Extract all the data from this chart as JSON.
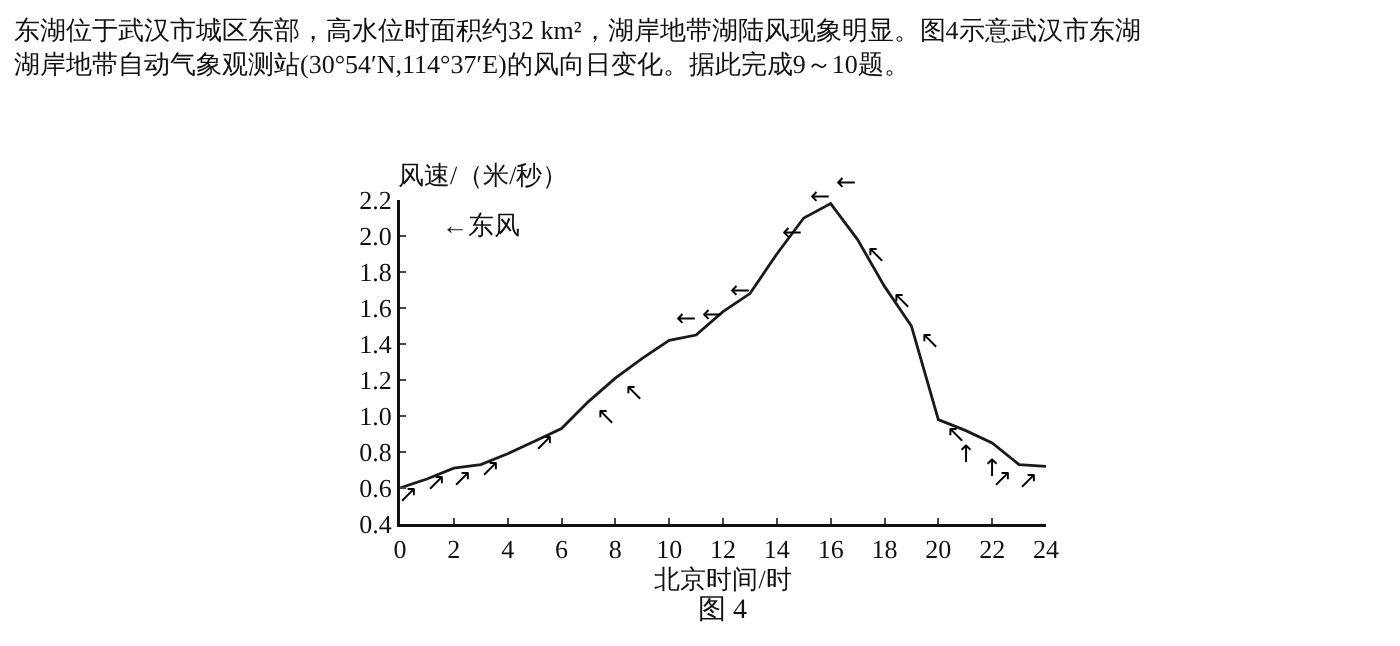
{
  "chart_data": {
    "type": "line",
    "title": "东湖位于武汉市城区东部，高水位时面积约32 km²，湖岸地带湖陆风现象明显。图4示意武汉市东湖湖岸地带自动气象观测站(30°54′N,114°37′E)的风向日变化。据此完成9～10题。",
    "xlabel": "北京时间/时",
    "ylabel": "风速/（米/秒）",
    "x": [
      0,
      1,
      2,
      3,
      4,
      5,
      6,
      7,
      8,
      9,
      10,
      11,
      12,
      13,
      14,
      15,
      16,
      17,
      18,
      19,
      20,
      21,
      22,
      23,
      24
    ],
    "series": [
      {
        "color": "#1a1a1a",
        "values": [
          0.6,
          0.65,
          0.71,
          0.73,
          0.79,
          0.86,
          0.93,
          1.08,
          1.21,
          1.32,
          1.42,
          1.45,
          1.58,
          1.68,
          1.9,
          2.1,
          2.18,
          1.98,
          1.72,
          1.5,
          0.98,
          0.92,
          0.85,
          0.73,
          0.72
        ]
      }
    ],
    "xlim": [
      0,
      24
    ],
    "xticks": [
      0,
      2,
      4,
      6,
      8,
      10,
      12,
      14,
      16,
      18,
      20,
      22,
      24
    ],
    "ylim": [
      0.4,
      2.2
    ],
    "yticks": [
      0.4,
      0.6,
      0.8,
      {
        "value": 1,
        "label": "1.0"
      },
      1.2,
      1.4,
      1.6,
      1.8,
      {
        "value": 2,
        "label": "2.0"
      },
      2.2
    ],
    "grid": false,
    "legend": false,
    "marker": "none",
    "line_style": "solid",
    "annotations": [
      "←东风",
      "图 4",
      {
        "text": "↗",
        "x": 1,
        "y": 0.65
      },
      {
        "text": "↗",
        "x": 2,
        "y": 0.71
      },
      {
        "text": "↗",
        "x": 3,
        "y": 0.73
      },
      {
        "text": "↗",
        "x": 4,
        "y": 0.79
      },
      {
        "text": "↗",
        "x": 6,
        "y": 0.93
      },
      {
        "text": "↖",
        "x": 7,
        "y": 1.08
      },
      {
        "text": "↖",
        "x": 8,
        "y": 1.21
      },
      {
        "text": "←",
        "x": 10,
        "y": 1.42
      },
      {
        "text": "←",
        "x": 11,
        "y": 1.45
      },
      {
        "text": "←",
        "x": 12,
        "y": 1.58
      },
      {
        "text": "←",
        "x": 14,
        "y": 1.9
      },
      {
        "text": "←",
        "x": 15,
        "y": 2.1
      },
      {
        "text": "←",
        "x": 16,
        "y": 2.18
      },
      {
        "text": "↖",
        "x": 17,
        "y": 1.98
      },
      {
        "text": "↖",
        "x": 18,
        "y": 1.72
      },
      {
        "text": "↖",
        "x": 19,
        "y": 1.5
      },
      {
        "text": "↖",
        "x": 20,
        "y": 0.98
      },
      {
        "text": "↑",
        "x": 21,
        "y": 0.92
      },
      {
        "text": "↑",
        "x": 22,
        "y": 0.85
      },
      {
        "text": "↗",
        "x": 23,
        "y": 0.73
      },
      {
        "text": "↗",
        "x": 24,
        "y": 0.72
      }
    ]
  }
}
